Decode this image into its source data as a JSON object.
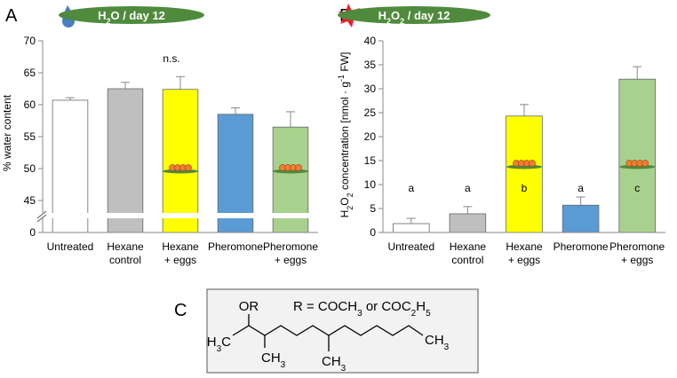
{
  "chart_data": [
    {
      "type": "bar",
      "panel": "A",
      "header": [
        "H",
        "2",
        "O / day 12"
      ],
      "annotation": "n.s.",
      "ylabel": "% water content",
      "categories": [
        [
          "Untreated"
        ],
        [
          "Hexane",
          "control"
        ],
        [
          "Hexane",
          "+ eggs"
        ],
        [
          "Pheromone"
        ],
        [
          "Pheromone",
          "+ eggs"
        ]
      ],
      "values": [
        60.7,
        62.5,
        62.4,
        58.5,
        56.5
      ],
      "errors": [
        0.4,
        1.0,
        2.0,
        1.0,
        2.4
      ],
      "colors": [
        "#ffffff",
        "#bfbfbf",
        "#ffff00",
        "#5b9bd5",
        "#a9d18e"
      ],
      "ylim": [
        0,
        70
      ],
      "axis_break": [
        0,
        40
      ],
      "yticks": [
        0,
        45,
        50,
        55,
        60,
        65,
        70
      ]
    },
    {
      "type": "bar",
      "panel": "B",
      "header": [
        "H",
        "2",
        "O",
        "2",
        " / day 12"
      ],
      "ylabel": [
        "H",
        "2",
        "O",
        "2",
        " concentration [nmol · g",
        "-1",
        " FW]"
      ],
      "categories": [
        [
          "Untreated"
        ],
        [
          "Hexane",
          "control"
        ],
        [
          "Hexane",
          "+ eggs"
        ],
        [
          "Pheromone"
        ],
        [
          "Pheromone",
          "+ eggs"
        ]
      ],
      "values": [
        1.85,
        3.9,
        24.3,
        5.7,
        32.0
      ],
      "errors": [
        1.1,
        1.5,
        2.4,
        1.7,
        2.6
      ],
      "group_labels": [
        "a",
        "a",
        "b",
        "a",
        "c"
      ],
      "colors": [
        "#ffffff",
        "#bfbfbf",
        "#ffff00",
        "#5b9bd5",
        "#a9d18e"
      ],
      "ylim": [
        0,
        40
      ],
      "yticks": [
        0,
        5,
        10,
        15,
        20,
        25,
        30,
        35,
        40
      ]
    }
  ],
  "structure": {
    "panel": "C",
    "or": "OR",
    "substituent": [
      "R = COCH",
      "3",
      " or COC",
      "2",
      "H",
      "5"
    ],
    "left": [
      "H",
      "3",
      "C"
    ],
    "methyls": [
      [
        "CH",
        "3"
      ],
      [
        "CH",
        "3"
      ],
      [
        "CH",
        "3"
      ]
    ]
  }
}
